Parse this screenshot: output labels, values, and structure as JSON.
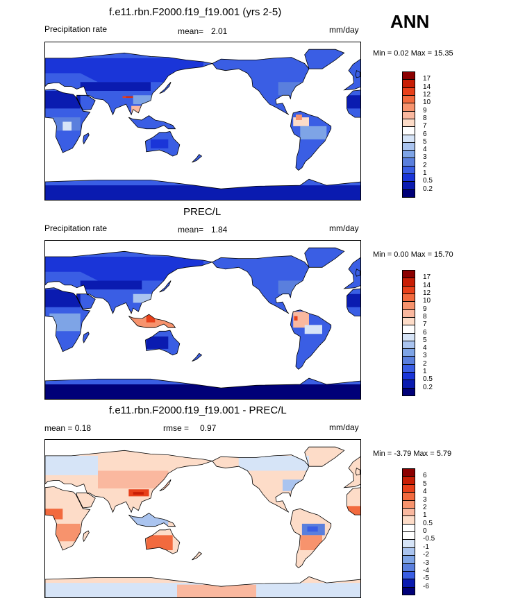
{
  "season": "ANN",
  "panels": [
    {
      "title": "f.e11.rbn.F2000.f19_f19.001 (yrs 2-5)",
      "left_label": "Precipitation rate",
      "mean_label": "mean=",
      "mean_value": "2.01",
      "units": "mm/day",
      "minmax": "Min =   0.02 Max =  15.35",
      "colorbar_labels": [
        "17",
        "14",
        "12",
        "10",
        "9",
        "8",
        "7",
        "6",
        "5",
        "4",
        "3",
        "2",
        "1",
        "0.5",
        "0.2"
      ],
      "colorbar_colors": [
        "#8b0000",
        "#c81e05",
        "#e8401a",
        "#f26a3e",
        "#f7936d",
        "#fab89f",
        "#fddcc8",
        "#ffffff",
        "#d6e4f7",
        "#aac4ef",
        "#7ea4e6",
        "#5a7fdd",
        "#3a5ee4",
        "#1a35d8",
        "#0a1bb0",
        "#000078"
      ],
      "map_style": "precip_a"
    },
    {
      "title": "PREC/L",
      "left_label": "Precipitation rate",
      "mean_label": "mean=",
      "mean_value": "1.84",
      "units": "mm/day",
      "minmax": "Min =   0.00 Max =  15.70",
      "colorbar_labels": [
        "17",
        "14",
        "12",
        "10",
        "9",
        "8",
        "7",
        "6",
        "5",
        "4",
        "3",
        "2",
        "1",
        "0.5",
        "0.2"
      ],
      "colorbar_colors": [
        "#8b0000",
        "#c81e05",
        "#e8401a",
        "#f26a3e",
        "#f7936d",
        "#fab89f",
        "#fddcc8",
        "#ffffff",
        "#d6e4f7",
        "#aac4ef",
        "#7ea4e6",
        "#5a7fdd",
        "#3a5ee4",
        "#1a35d8",
        "#0a1bb0",
        "#000078"
      ],
      "map_style": "precip_b"
    },
    {
      "title": "f.e11.rbn.F2000.f19_f19.001 - PREC/L",
      "left_label": "mean =   0.18",
      "mean_label": "rmse =",
      "mean_value": "0.97",
      "units": "mm/day",
      "minmax": "Min =  -3.79 Max =   5.79",
      "colorbar_labels": [
        "6",
        "5",
        "4",
        "3",
        "2",
        "1",
        "0.5",
        "0",
        "-0.5",
        "-1",
        "-2",
        "-3",
        "-4",
        "-5",
        "-6"
      ],
      "colorbar_colors": [
        "#8b0000",
        "#c81e05",
        "#e8401a",
        "#f26a3e",
        "#f7936d",
        "#fab89f",
        "#fddcc8",
        "#ffffff",
        "#ffffff",
        "#d6e4f7",
        "#aac4ef",
        "#7ea4e6",
        "#5a7fdd",
        "#3a5ee4",
        "#0a1bb0",
        "#000078"
      ],
      "map_style": "diff"
    }
  ],
  "chart_data": [
    {
      "type": "heatmap",
      "title": "f.e11.rbn.F2000.f19_f19.001 (yrs 2-5)",
      "variable": "Precipitation rate",
      "mean": 2.01,
      "units": "mm/day",
      "min": 0.02,
      "max": 15.35,
      "levels": [
        0.2,
        0.5,
        1,
        2,
        3,
        4,
        5,
        6,
        7,
        8,
        9,
        10,
        12,
        14,
        17
      ]
    },
    {
      "type": "heatmap",
      "title": "PREC/L",
      "variable": "Precipitation rate",
      "mean": 1.84,
      "units": "mm/day",
      "min": 0.0,
      "max": 15.7,
      "levels": [
        0.2,
        0.5,
        1,
        2,
        3,
        4,
        5,
        6,
        7,
        8,
        9,
        10,
        12,
        14,
        17
      ]
    },
    {
      "type": "heatmap",
      "title": "f.e11.rbn.F2000.f19_f19.001 - PREC/L",
      "mean": 0.18,
      "rmse": 0.97,
      "units": "mm/day",
      "min": -3.79,
      "max": 5.79,
      "levels": [
        -6,
        -5,
        -4,
        -3,
        -2,
        -1,
        -0.5,
        0,
        0.5,
        1,
        2,
        3,
        4,
        5,
        6
      ]
    }
  ]
}
